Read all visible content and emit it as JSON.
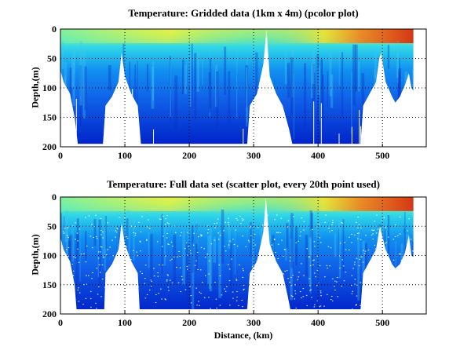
{
  "chart_data": [
    {
      "type": "heatmap",
      "title": "Temperature: Gridded data (1km x 4m) (pcolor plot)",
      "xlabel": "",
      "ylabel": "Depth,(m)",
      "xlim": [
        0,
        568
      ],
      "ylim": [
        0,
        200
      ],
      "y_reversed": true,
      "xticks": [
        0,
        100,
        200,
        300,
        400,
        500
      ],
      "yticks": [
        0,
        50,
        100,
        150,
        200
      ],
      "grid": true,
      "bottom_profile_km_m": [
        [
          0,
          70
        ],
        [
          5,
          90
        ],
        [
          15,
          110
        ],
        [
          22,
          150
        ],
        [
          27,
          195
        ],
        [
          66,
          195
        ],
        [
          70,
          130
        ],
        [
          80,
          115
        ],
        [
          90,
          90
        ],
        [
          95,
          40
        ],
        [
          100,
          80
        ],
        [
          110,
          110
        ],
        [
          120,
          130
        ],
        [
          125,
          195
        ],
        [
          290,
          195
        ],
        [
          294,
          130
        ],
        [
          305,
          110
        ],
        [
          315,
          60
        ],
        [
          320,
          0
        ],
        [
          325,
          80
        ],
        [
          335,
          110
        ],
        [
          345,
          130
        ],
        [
          355,
          170
        ],
        [
          360,
          195
        ],
        [
          466,
          195
        ],
        [
          470,
          130
        ],
        [
          480,
          110
        ],
        [
          490,
          90
        ],
        [
          495,
          50
        ],
        [
          498,
          40
        ],
        [
          505,
          90
        ],
        [
          515,
          115
        ],
        [
          520,
          125
        ],
        [
          527,
          115
        ],
        [
          535,
          95
        ],
        [
          541,
          75
        ],
        [
          545,
          100
        ],
        [
          548,
          105
        ]
      ]
    },
    {
      "type": "scatter",
      "title": "Temperature: Full data set (scatter plot, every 20th point used)",
      "xlabel": "Distance, (km)",
      "ylabel": "Depth,(m)",
      "xlim": [
        0,
        568
      ],
      "ylim": [
        0,
        200
      ],
      "y_reversed": true,
      "xticks": [
        0,
        100,
        200,
        300,
        400,
        500
      ],
      "yticks": [
        0,
        50,
        100,
        150,
        200
      ],
      "grid": true,
      "bottom_profile_km_m": [
        [
          0,
          70
        ],
        [
          5,
          90
        ],
        [
          15,
          110
        ],
        [
          22,
          150
        ],
        [
          25,
          192
        ],
        [
          68,
          192
        ],
        [
          70,
          130
        ],
        [
          80,
          115
        ],
        [
          90,
          90
        ],
        [
          95,
          45
        ],
        [
          100,
          80
        ],
        [
          110,
          110
        ],
        [
          120,
          130
        ],
        [
          123,
          192
        ],
        [
          290,
          192
        ],
        [
          294,
          130
        ],
        [
          305,
          110
        ],
        [
          315,
          60
        ],
        [
          319,
          0
        ],
        [
          325,
          80
        ],
        [
          335,
          110
        ],
        [
          345,
          130
        ],
        [
          353,
          170
        ],
        [
          357,
          192
        ],
        [
          466,
          192
        ],
        [
          470,
          130
        ],
        [
          480,
          110
        ],
        [
          490,
          90
        ],
        [
          496,
          50
        ],
        [
          505,
          90
        ],
        [
          515,
          115
        ],
        [
          520,
          122
        ],
        [
          527,
          115
        ],
        [
          535,
          95
        ],
        [
          541,
          65
        ],
        [
          545,
          100
        ],
        [
          548,
          102
        ]
      ]
    }
  ],
  "colors": {
    "surface_warm": "#f0e040",
    "surface_hot": "#e03010",
    "mid": "#20c0f0",
    "deep": "#0020d0"
  }
}
